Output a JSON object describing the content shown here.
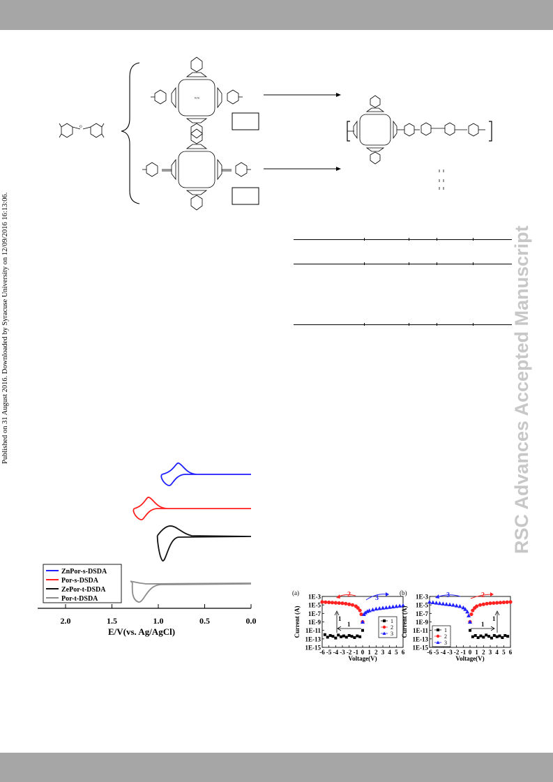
{
  "side_note": "Published on 31 August 2016. Downloaded by Syracuse University on 12/09/2016 16:13:06.",
  "watermark": "RSC Advances Accepted Manuscript",
  "scheme": {
    "label_box_1": "",
    "label_box_2": ""
  },
  "cv_chart": {
    "chart_data": {
      "type": "line",
      "xlabel": "E/V(vs. Ag/AgCl)",
      "ylabel": "",
      "xlim": [
        2.0,
        0.0
      ],
      "x_ticks": [
        "2.0",
        "1.5",
        "1.0",
        "0.5",
        "0.0"
      ],
      "legend_position": "top-left",
      "series": [
        {
          "name": "ZnPor-s-DSDA",
          "color": "#1f1fff",
          "peak_oxidation": 0.88,
          "peak_reduction": 0.78
        },
        {
          "name": "Por-s-DSDA",
          "color": "#ff1f1f",
          "peak_oxidation": 1.18,
          "peak_reduction": 1.1
        },
        {
          "name": "ZePor-t-DSDA",
          "color": "#111111",
          "peak_oxidation": 0.93,
          "peak_reduction": 0.85
        },
        {
          "name": "Por-t-DSDA",
          "color": "#8c8c8c",
          "peak_oxidation": 1.2,
          "peak_reduction": 1.28
        }
      ]
    }
  },
  "iv_charts": [
    {
      "panel": "(a)",
      "chart_data": {
        "type": "scatter",
        "xlabel": "Voltage(V)",
        "ylabel": "Current (A)",
        "x_ticks": [
          "-6",
          "-5",
          "-4",
          "-3",
          "-2",
          "-1",
          "0",
          "1",
          "2",
          "3",
          "4",
          "5",
          "6"
        ],
        "y_ticks": [
          "1E-3",
          "1E-5",
          "1E-7",
          "1E-9",
          "1E-11",
          "1E-13",
          "1E-15"
        ],
        "log_y": true,
        "legend": [
          "1",
          "2",
          "3"
        ],
        "arrow_labels": [
          "2",
          "3"
        ],
        "inset_labels": [
          "1",
          "1"
        ],
        "series": [
          {
            "name": "1",
            "color": "#000000",
            "marker": "square",
            "x": [
              -5.6,
              -5.2,
              -4.8,
              -4.4,
              -4.0,
              -3.6,
              -3.2,
              -2.8,
              -2.4,
              -2.0,
              -1.6,
              -1.2,
              -0.8,
              -0.4,
              0.0
            ],
            "y": [
              -12.0,
              -12.6,
              -12.2,
              -12.4,
              -12.8,
              -12.1,
              -12.5,
              -12.3,
              -12.6,
              -12.2,
              -12.4,
              -12.7,
              -12.3,
              -12.5,
              -11.0
            ]
          },
          {
            "name": "2",
            "color": "#ff2020",
            "marker": "circle",
            "x": [
              -6.0,
              -5.5,
              -5.0,
              -4.5,
              -4.0,
              -3.5,
              -3.0,
              -2.5,
              -2.0,
              -1.5,
              -1.0,
              -0.7,
              -0.4,
              -0.2,
              0.0
            ],
            "y": [
              -4.3,
              -4.35,
              -4.4,
              -4.45,
              -4.5,
              -4.55,
              -4.6,
              -4.7,
              -4.85,
              -5.0,
              -5.3,
              -5.7,
              -6.3,
              -7.2,
              -9.0
            ]
          },
          {
            "name": "3",
            "color": "#2020ff",
            "marker": "triangle",
            "x": [
              0.0,
              0.2,
              0.4,
              0.7,
              1.0,
              1.5,
              2.0,
              2.5,
              3.0,
              3.5,
              4.0,
              4.5,
              5.0,
              5.5,
              6.0
            ],
            "y": [
              -9.0,
              -7.2,
              -6.8,
              -6.5,
              -6.3,
              -6.1,
              -5.9,
              -5.8,
              -5.7,
              -5.6,
              -5.5,
              -5.4,
              -5.3,
              -5.2,
              -5.1
            ]
          }
        ]
      }
    },
    {
      "panel": "(b)",
      "chart_data": {
        "type": "scatter",
        "xlabel": "Voltage(V)",
        "ylabel": "Current (A)",
        "x_ticks": [
          "-6",
          "-5",
          "-4",
          "-3",
          "-2",
          "-1",
          "0",
          "1",
          "2",
          "3",
          "4",
          "5",
          "6"
        ],
        "y_ticks": [
          "1E-3",
          "1E-5",
          "1E-7",
          "1E-9",
          "1E-11",
          "1E-13",
          "1E-15"
        ],
        "log_y": true,
        "legend": [
          "1",
          "2",
          "3"
        ],
        "arrow_labels": [
          "3",
          "2"
        ],
        "inset_labels": [
          "1",
          "1"
        ],
        "series": [
          {
            "name": "1",
            "color": "#000000",
            "marker": "square",
            "x": [
              0.0,
              0.4,
              0.8,
              1.2,
              1.6,
              2.0,
              2.4,
              2.8,
              3.2,
              3.6,
              4.0,
              4.4,
              4.8,
              5.2,
              5.6
            ],
            "y": [
              -11.0,
              -12.5,
              -12.2,
              -12.7,
              -12.3,
              -12.6,
              -12.1,
              -12.4,
              -12.8,
              -12.2,
              -12.5,
              -12.3,
              -12.7,
              -12.2,
              -12.4
            ]
          },
          {
            "name": "2",
            "color": "#ff2020",
            "marker": "circle",
            "x": [
              0.0,
              0.2,
              0.4,
              0.7,
              1.0,
              1.5,
              2.0,
              2.5,
              3.0,
              3.5,
              4.0,
              4.5,
              5.0,
              5.5,
              6.0
            ],
            "y": [
              -9.0,
              -7.2,
              -6.3,
              -5.7,
              -5.3,
              -5.0,
              -4.85,
              -4.7,
              -4.6,
              -4.55,
              -4.5,
              -4.45,
              -4.4,
              -4.35,
              -4.3
            ]
          },
          {
            "name": "3",
            "color": "#2020ff",
            "marker": "triangle",
            "x": [
              -6.0,
              -5.5,
              -5.0,
              -4.5,
              -4.0,
              -3.5,
              -3.0,
              -2.5,
              -2.0,
              -1.5,
              -1.0,
              -0.7,
              -0.4,
              -0.2,
              0.0
            ],
            "y": [
              -4.3,
              -4.4,
              -4.5,
              -4.6,
              -4.7,
              -4.8,
              -4.9,
              -5.0,
              -5.15,
              -5.3,
              -5.6,
              -6.0,
              -6.6,
              -7.5,
              -9.0
            ]
          }
        ]
      }
    }
  ]
}
